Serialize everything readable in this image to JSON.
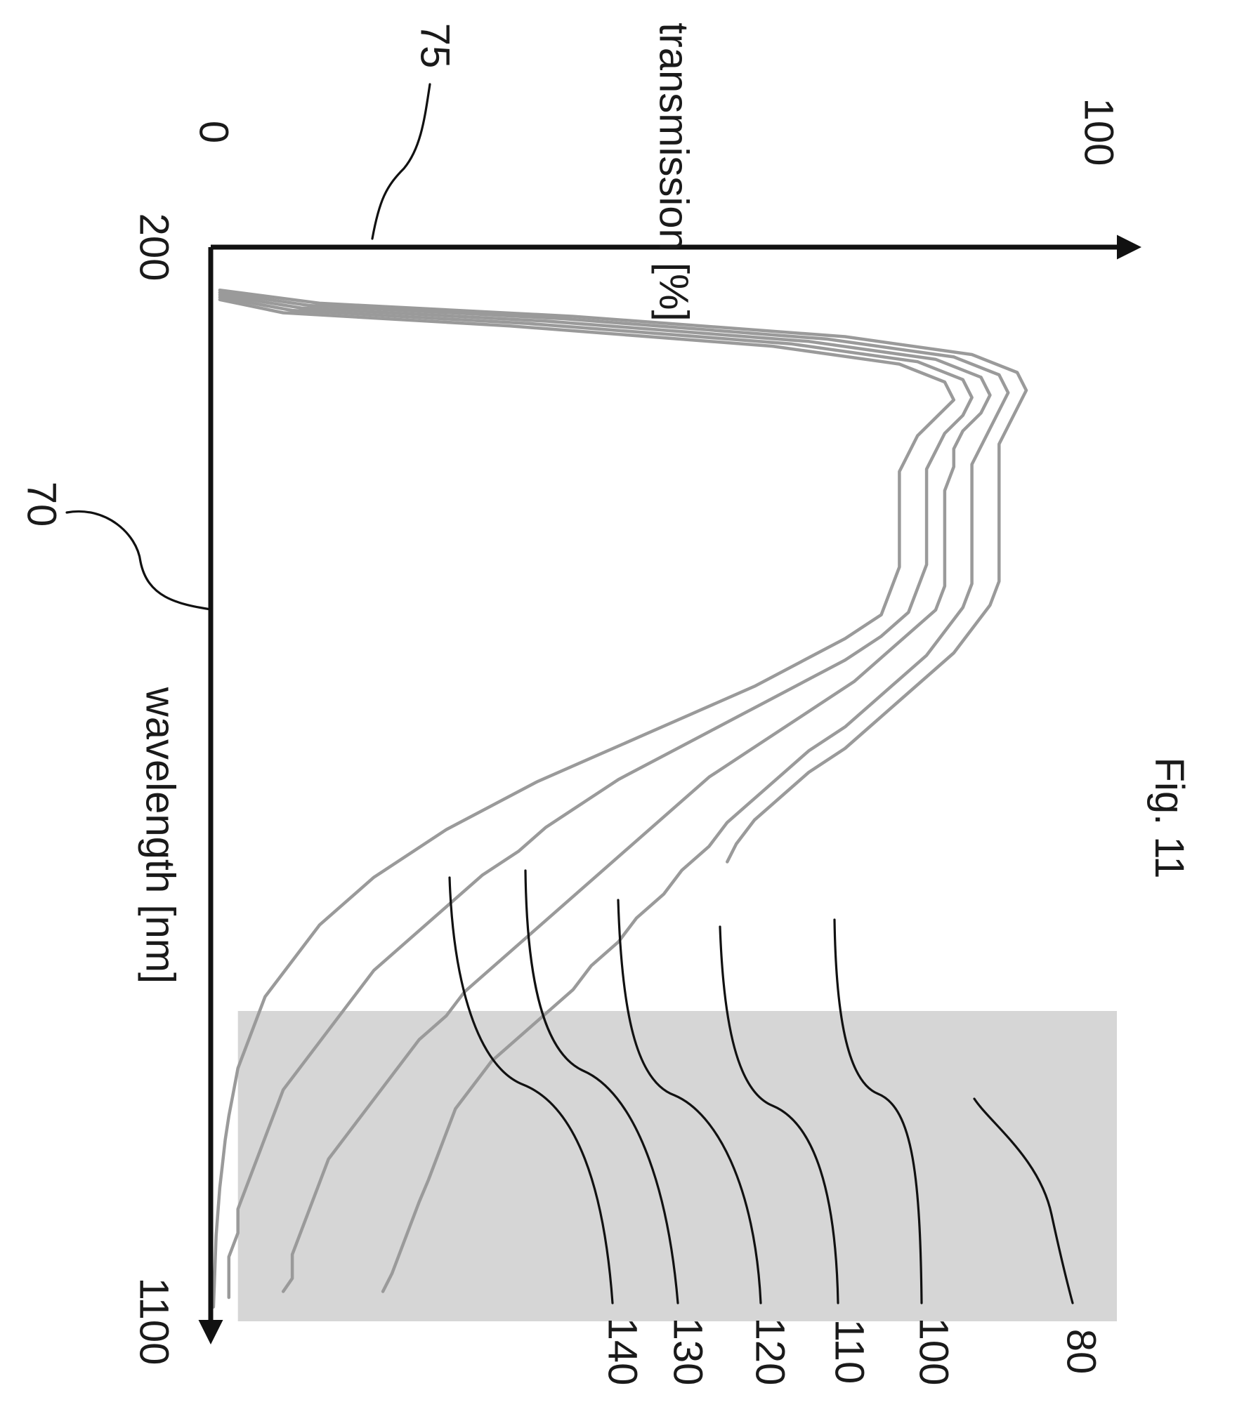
{
  "figure": {
    "caption": "Fig. 11"
  },
  "chart_data": {
    "type": "line",
    "title": "",
    "orientation": "rotated-90-clockwise",
    "xlabel": "wavelength  [nm]",
    "ylabel": "transmission [%]",
    "xlim": [
      200,
      1100
    ],
    "ylim": [
      0,
      100
    ],
    "x_ticks": [
      "200",
      "1100"
    ],
    "y_ticks": [
      "0",
      "100"
    ],
    "axis_refs": {
      "wavelength": "70",
      "transmission": "75"
    },
    "shaded_band": {
      "ref": "80",
      "x_range": [
        840,
        1100
      ],
      "y_range": [
        3,
        100
      ],
      "color": "#d6d6d6"
    },
    "line_color": "#9a9a9a",
    "series": [
      {
        "ref": "100",
        "x": [
          236,
          247,
          258,
          275,
          290,
          305,
          320,
          335,
          350,
          365,
          380,
          400,
          420,
          440,
          460,
          480,
          500,
          520,
          540,
          560,
          580,
          600,
          620,
          640,
          660,
          680,
          700,
          715
        ],
        "y": [
          1,
          12,
          40,
          70,
          84,
          89,
          90,
          89,
          88,
          87,
          87,
          87,
          87,
          87,
          87,
          87,
          86,
          84,
          82,
          79,
          76,
          73,
          70,
          66,
          63,
          60,
          58,
          57
        ]
      },
      {
        "ref": "110",
        "x": [
          238,
          249,
          260,
          277,
          292,
          307,
          322,
          337,
          352,
          367,
          382,
          402,
          422,
          442,
          462,
          482,
          502,
          522,
          542,
          562,
          582,
          602,
          622,
          642,
          662,
          682,
          702,
          722,
          742,
          762,
          782,
          802,
          822,
          842,
          862,
          882,
          902,
          922,
          942,
          962,
          982,
          1000,
          1020,
          1040,
          1060,
          1075
        ],
        "y": [
          1,
          11,
          39,
          68,
          82,
          87,
          88,
          87,
          86,
          85,
          84,
          84,
          84,
          84,
          84,
          84,
          83,
          81,
          79,
          76,
          73,
          70,
          66,
          63,
          60,
          57,
          55,
          52,
          50,
          47,
          45,
          42,
          40,
          37,
          34,
          31,
          29,
          27,
          26,
          25,
          24,
          23,
          22,
          21,
          20,
          19
        ]
      },
      {
        "ref": "120",
        "x": [
          240,
          251,
          262,
          279,
          294,
          309,
          324,
          339,
          354,
          369,
          384,
          404,
          424,
          444,
          464,
          484,
          504,
          524,
          544,
          564,
          584,
          604,
          624,
          644,
          664,
          684,
          704,
          724,
          744,
          764,
          784,
          804,
          824,
          844,
          864,
          884,
          904,
          924,
          944,
          964,
          984,
          1004,
          1024,
          1044,
          1064,
          1075
        ],
        "y": [
          1,
          10,
          37,
          66,
          80,
          85,
          86,
          85,
          83,
          82,
          82,
          81,
          81,
          81,
          81,
          81,
          80,
          77,
          74,
          71,
          67,
          63,
          59,
          55,
          52,
          49,
          46,
          43,
          40,
          37,
          34,
          31,
          28,
          26,
          23,
          21,
          19,
          17,
          15,
          13,
          12,
          11,
          10,
          9,
          9,
          8
        ]
      },
      {
        "ref": "130",
        "x": [
          242,
          253,
          264,
          281,
          296,
          311,
          326,
          341,
          356,
          371,
          386,
          406,
          426,
          446,
          466,
          486,
          506,
          526,
          546,
          566,
          586,
          606,
          626,
          646,
          666,
          686,
          706,
          726,
          746,
          766,
          786,
          806,
          826,
          846,
          866,
          886,
          906,
          926,
          946,
          966,
          986,
          1006,
          1026,
          1046,
          1066,
          1080
        ],
        "y": [
          1,
          9,
          35,
          64,
          78,
          83,
          84,
          83,
          81,
          80,
          79,
          79,
          79,
          79,
          79,
          78,
          77,
          74,
          70,
          65,
          60,
          55,
          50,
          45,
          41,
          37,
          34,
          30,
          27,
          24,
          21,
          18,
          16,
          14,
          12,
          10,
          8,
          7,
          6,
          5,
          4,
          3,
          3,
          2,
          2,
          2
        ]
      },
      {
        "ref": "140",
        "x": [
          244,
          255,
          266,
          283,
          298,
          313,
          328,
          343,
          358,
          373,
          388,
          408,
          428,
          448,
          468,
          488,
          508,
          528,
          548,
          568,
          588,
          608,
          628,
          648,
          668,
          688,
          708,
          728,
          748,
          768,
          788,
          808,
          828,
          848,
          868,
          888,
          908,
          928,
          948,
          968,
          988,
          1008,
          1028,
          1048,
          1068,
          1088
        ],
        "y": [
          1,
          8,
          33,
          62,
          76,
          81,
          82,
          80,
          78,
          77,
          76,
          76,
          76,
          76,
          76,
          75,
          74,
          70,
          65,
          60,
          54,
          48,
          42,
          36,
          31,
          26,
          22,
          18,
          15,
          12,
          10,
          8,
          6,
          5,
          4,
          3,
          2.5,
          2,
          1.6,
          1.3,
          1,
          0.8,
          0.6,
          0.5,
          0.4,
          0.3
        ]
      }
    ],
    "series_labels": [
      "100",
      "110",
      "120",
      "130",
      "140",
      "80"
    ]
  }
}
